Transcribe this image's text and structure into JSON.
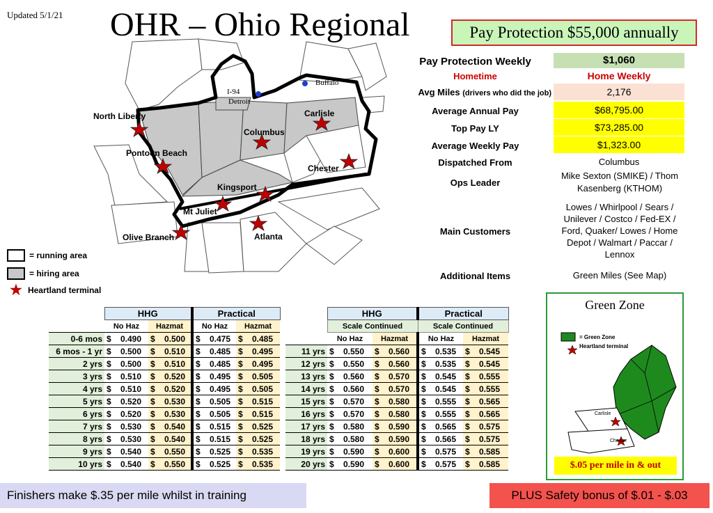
{
  "updated": "Updated 5/1/21",
  "title": "OHR – Ohio Regional",
  "pay_protection_banner": "Pay Protection $55,000 annually",
  "info": {
    "pay_protection_weekly_label": "Pay Protection Weekly",
    "pay_protection_weekly_value": "$1,060",
    "hometime_label": "Hometime",
    "hometime_value": "Home Weekly",
    "avg_miles_label": "Avg Miles",
    "avg_miles_note": "(drivers who did the job)",
    "avg_miles_value": "2,176",
    "avg_annual_pay_label": "Average Annual Pay",
    "avg_annual_pay_value": "$68,795.00",
    "top_pay_label": "Top Pay LY",
    "top_pay_value": "$73,285.00",
    "avg_weekly_pay_label": "Average Weekly Pay",
    "avg_weekly_pay_value": "$1,323.00",
    "dispatched_label": "Dispatched From",
    "dispatched_value": "Columbus",
    "ops_leader_label": "Ops Leader",
    "ops_leader_line1": "Mike Sexton (SMIKE) / Thom",
    "ops_leader_line2": "Kasenberg (KTHOM)",
    "main_customers_label": "Main Customers",
    "main_customers_lines": [
      "Lowes / Whirlpool / Sears /",
      "Unilever / Costco / Fed-EX /",
      "Ford, Quaker/ Lowes / Home",
      "Depot / Walmart / Paccar /",
      "Lennox"
    ],
    "additional_label": "Additional Items",
    "additional_value": "Green Miles (See Map)"
  },
  "map": {
    "labels": {
      "north_liberty": "North Liberty",
      "pontoon_beach": "Pontoon Beach",
      "columbus": "Columbus",
      "carlisle": "Carlisle",
      "chester": "Chester",
      "kingsport": "Kingsport",
      "mt_juliet": "Mt Juliet",
      "olive_branch": "Olive Branch",
      "atlanta": "Atlanta",
      "i94": "I-94",
      "detroit": "Detroit",
      "buffalo": "Buffalo"
    }
  },
  "legend": {
    "running": "= running area",
    "hiring": "= hiring area",
    "terminal": "Heartland terminal"
  },
  "table_left": {
    "hhg": "HHG",
    "practical": "Practical",
    "no_haz": "No Haz",
    "hazmat": "Hazmat",
    "rows": [
      {
        "label": "0-6 mos",
        "a": "0.490",
        "b": "0.500",
        "c": "0.475",
        "d": "0.485"
      },
      {
        "label": "6 mos - 1 yr",
        "a": "0.500",
        "b": "0.510",
        "c": "0.485",
        "d": "0.495"
      },
      {
        "label": "2 yrs",
        "a": "0.500",
        "b": "0.510",
        "c": "0.485",
        "d": "0.495"
      },
      {
        "label": "3 yrs",
        "a": "0.510",
        "b": "0.520",
        "c": "0.495",
        "d": "0.505"
      },
      {
        "label": "4 yrs",
        "a": "0.510",
        "b": "0.520",
        "c": "0.495",
        "d": "0.505"
      },
      {
        "label": "5 yrs",
        "a": "0.520",
        "b": "0.530",
        "c": "0.505",
        "d": "0.515"
      },
      {
        "label": "6 yrs",
        "a": "0.520",
        "b": "0.530",
        "c": "0.505",
        "d": "0.515"
      },
      {
        "label": "7 yrs",
        "a": "0.530",
        "b": "0.540",
        "c": "0.515",
        "d": "0.525"
      },
      {
        "label": "8 yrs",
        "a": "0.530",
        "b": "0.540",
        "c": "0.515",
        "d": "0.525"
      },
      {
        "label": "9 yrs",
        "a": "0.540",
        "b": "0.550",
        "c": "0.525",
        "d": "0.535"
      },
      {
        "label": "10 yrs",
        "a": "0.540",
        "b": "0.550",
        "c": "0.525",
        "d": "0.535"
      }
    ]
  },
  "table_right": {
    "hhg": "HHG",
    "practical": "Practical",
    "scale": "Scale Continued",
    "no_haz": "No Haz",
    "hazmat": "Hazmat",
    "rows": [
      {
        "label": "11 yrs",
        "a": "0.550",
        "b": "0.560",
        "c": "0.535",
        "d": "0.545"
      },
      {
        "label": "12 yrs",
        "a": "0.550",
        "b": "0.560",
        "c": "0.535",
        "d": "0.545"
      },
      {
        "label": "13 yrs",
        "a": "0.560",
        "b": "0.570",
        "c": "0.545",
        "d": "0.555"
      },
      {
        "label": "14 yrs",
        "a": "0.560",
        "b": "0.570",
        "c": "0.545",
        "d": "0.555"
      },
      {
        "label": "15 yrs",
        "a": "0.570",
        "b": "0.580",
        "c": "0.555",
        "d": "0.565"
      },
      {
        "label": "16 yrs",
        "a": "0.570",
        "b": "0.580",
        "c": "0.555",
        "d": "0.565"
      },
      {
        "label": "17 yrs",
        "a": "0.580",
        "b": "0.590",
        "c": "0.565",
        "d": "0.575"
      },
      {
        "label": "18 yrs",
        "a": "0.580",
        "b": "0.590",
        "c": "0.565",
        "d": "0.575"
      },
      {
        "label": "19 yrs",
        "a": "0.590",
        "b": "0.600",
        "c": "0.575",
        "d": "0.585"
      },
      {
        "label": "20 yrs",
        "a": "0.590",
        "b": "0.600",
        "c": "0.575",
        "d": "0.585"
      }
    ]
  },
  "green_zone": {
    "title": "Green Zone",
    "legend_zone": "= Green Zone",
    "legend_terminal": "Heartland terminal",
    "carlisle": "Carlisle",
    "chester": "Chester",
    "note": "$.05 per mile in & out",
    "zone_color": "#1e8a1e"
  },
  "footer": {
    "finishers": "Finishers make $.35 per mile whilst in training",
    "safety": "PLUS Safety bonus of $.01 - $.03"
  }
}
